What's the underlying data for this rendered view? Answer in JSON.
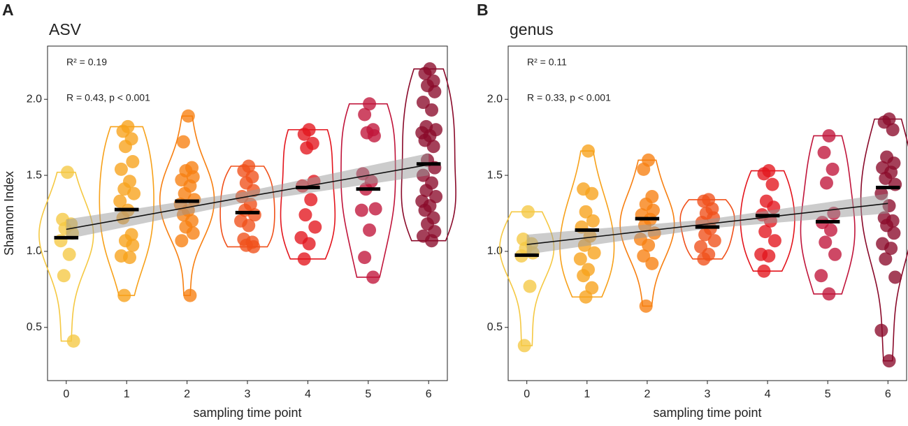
{
  "chart_data": [
    {
      "type": "violin",
      "panel": "A",
      "title": "ASV",
      "x_label": "sampling time point",
      "y_label": "Shannon Index",
      "annotations": [
        "R² = 0.19",
        "R = 0.43, p < 0.001"
      ],
      "xlim": [
        -0.31,
        6.31
      ],
      "xticks": [
        0,
        1,
        2,
        3,
        4,
        5,
        6
      ],
      "ylim": [
        0.15,
        2.35
      ],
      "yticks": [
        {
          "value": 0.5,
          "label": "0.5"
        },
        {
          "value": 1,
          "label": "1.0"
        },
        {
          "value": 1.5,
          "label": "1.5"
        },
        {
          "value": 2,
          "label": "2.0"
        }
      ],
      "fit": {
        "x": [
          0,
          3,
          6
        ],
        "y": [
          1.145,
          1.36,
          1.57
        ],
        "lower": [
          1.08,
          1.325,
          1.5
        ],
        "upper": [
          1.21,
          1.395,
          1.645
        ]
      },
      "series": [
        {
          "color": "#f5c842",
          "median": 1.09,
          "x": [
            0.02,
            -0.06,
            0.08,
            -0.02,
            0.1,
            -0.09,
            0.05,
            -0.04,
            0.12
          ],
          "values": [
            1.52,
            1.21,
            1.18,
            1.15,
            1.12,
            1.07,
            0.98,
            0.84,
            0.41
          ]
        },
        {
          "color": "#f7a11a",
          "median": 1.275,
          "x": [
            1.02,
            0.94,
            1.08,
            0.98,
            1.1,
            0.91,
            1.05,
            0.96,
            1.12,
            0.89,
            1.02,
            0.94,
            1.08,
            0.98,
            1.1,
            0.91,
            1.05,
            0.96
          ],
          "values": [
            1.82,
            1.79,
            1.74,
            1.69,
            1.59,
            1.54,
            1.46,
            1.41,
            1.38,
            1.33,
            1.27,
            1.22,
            1.11,
            1.07,
            1.04,
            0.97,
            0.96,
            0.71
          ]
        },
        {
          "color": "#f77f10",
          "median": 1.33,
          "x": [
            2.02,
            1.94,
            2.08,
            1.98,
            2.1,
            1.91,
            2.05,
            1.96,
            2.12,
            1.89,
            2.02,
            1.94,
            2.08,
            1.98,
            2.1,
            1.91,
            2.05
          ],
          "values": [
            1.89,
            1.72,
            1.55,
            1.53,
            1.49,
            1.47,
            1.43,
            1.38,
            1.34,
            1.31,
            1.27,
            1.24,
            1.2,
            1.16,
            1.12,
            1.07,
            0.71
          ]
        },
        {
          "color": "#f0501a",
          "median": 1.255,
          "x": [
            3.02,
            2.94,
            3.08,
            2.98,
            3.1,
            2.91,
            3.05,
            2.96,
            3.12,
            2.89,
            3.02,
            2.94,
            3.08,
            2.98,
            3.1
          ],
          "values": [
            1.56,
            1.53,
            1.49,
            1.45,
            1.4,
            1.36,
            1.31,
            1.27,
            1.24,
            1.2,
            1.17,
            1.08,
            1.06,
            1.04,
            1.03
          ]
        },
        {
          "color": "#e3141c",
          "median": 1.42,
          "x": [
            4.02,
            3.94,
            4.08,
            3.98,
            4.1,
            3.91,
            4.05,
            3.96,
            4.12,
            3.89,
            4.02,
            3.94
          ],
          "values": [
            1.8,
            1.77,
            1.71,
            1.68,
            1.46,
            1.43,
            1.34,
            1.24,
            1.16,
            1.09,
            1.05,
            0.95
          ]
        },
        {
          "color": "#c0143a",
          "median": 1.41,
          "x": [
            5.02,
            4.94,
            5.08,
            4.98,
            5.1,
            4.91,
            5.05,
            4.96,
            5.12,
            4.89,
            5.02,
            4.94,
            5.08
          ],
          "values": [
            1.97,
            1.9,
            1.8,
            1.78,
            1.76,
            1.51,
            1.46,
            1.41,
            1.28,
            1.27,
            1.14,
            0.96,
            0.83
          ]
        },
        {
          "color": "#8a0a2a",
          "median": 1.575,
          "x": [
            6.02,
            5.94,
            6.08,
            5.98,
            6.1,
            5.91,
            6.05,
            5.96,
            6.12,
            5.89,
            6.02,
            5.94,
            6.08,
            5.98,
            6.1,
            5.91,
            6.05,
            5.96,
            6.12,
            5.89,
            6.02,
            5.94,
            6.08,
            5.98,
            6.1,
            5.91,
            6.05
          ],
          "values": [
            2.2,
            2.17,
            2.12,
            2.09,
            2.05,
            1.98,
            1.93,
            1.82,
            1.8,
            1.78,
            1.76,
            1.73,
            1.69,
            1.6,
            1.55,
            1.5,
            1.45,
            1.4,
            1.36,
            1.33,
            1.3,
            1.27,
            1.22,
            1.18,
            1.13,
            1.1,
            1.07
          ]
        }
      ]
    },
    {
      "type": "violin",
      "panel": "B",
      "title": "genus",
      "x_label": "sampling time point",
      "annotations": [
        "R² = 0.11",
        "R = 0.33, p < 0.001"
      ],
      "xlim": [
        -0.31,
        6.31
      ],
      "xticks": [
        0,
        1,
        2,
        3,
        4,
        5,
        6
      ],
      "ylim": [
        0.15,
        2.35
      ],
      "yticks": [
        {
          "value": 0.5,
          "label": "0.5"
        },
        {
          "value": 1,
          "label": "1.0"
        },
        {
          "value": 1.5,
          "label": "1.5"
        },
        {
          "value": 2,
          "label": "2.0"
        }
      ],
      "fit": {
        "x": [
          0,
          3,
          6
        ],
        "y": [
          1.045,
          1.18,
          1.315
        ],
        "lower": [
          0.98,
          1.15,
          1.25
        ],
        "upper": [
          1.11,
          1.21,
          1.38
        ]
      },
      "series": [
        {
          "color": "#f5c842",
          "median": 0.975,
          "x": [
            0.02,
            -0.06,
            0.08,
            -0.02,
            0.1,
            -0.09,
            0.05,
            -0.04
          ],
          "values": [
            1.26,
            1.08,
            1.05,
            1.02,
            0.99,
            0.97,
            0.77,
            0.38
          ]
        },
        {
          "color": "#f7a11a",
          "median": 1.14,
          "x": [
            1.02,
            0.94,
            1.08,
            0.98,
            1.1,
            0.91,
            1.05,
            0.96,
            1.12,
            0.89,
            1.02,
            0.94,
            1.08,
            0.98
          ],
          "values": [
            1.66,
            1.41,
            1.38,
            1.26,
            1.2,
            1.16,
            1.1,
            1.04,
            0.99,
            0.95,
            0.88,
            0.84,
            0.76,
            0.7
          ]
        },
        {
          "color": "#f77f10",
          "median": 1.215,
          "x": [
            2.02,
            1.94,
            2.08,
            1.98,
            2.1,
            1.91,
            2.05,
            1.96,
            2.12,
            1.89,
            2.02,
            1.94,
            2.08,
            1.98
          ],
          "values": [
            1.6,
            1.54,
            1.36,
            1.31,
            1.27,
            1.24,
            1.21,
            1.17,
            1.12,
            1.08,
            1.04,
            0.97,
            0.92,
            0.64
          ]
        },
        {
          "color": "#f0501a",
          "median": 1.16,
          "x": [
            3.02,
            2.94,
            3.08,
            2.98,
            3.1,
            2.91,
            3.05,
            2.96,
            3.12,
            2.89,
            3.02,
            2.94
          ],
          "values": [
            1.34,
            1.33,
            1.28,
            1.25,
            1.22,
            1.19,
            1.15,
            1.11,
            1.07,
            1.03,
            0.98,
            0.95
          ]
        },
        {
          "color": "#e3141c",
          "median": 1.235,
          "x": [
            4.02,
            3.94,
            4.08,
            3.98,
            4.1,
            3.91,
            4.05,
            3.96,
            4.12,
            3.89,
            4.02,
            3.94
          ],
          "values": [
            1.53,
            1.51,
            1.44,
            1.33,
            1.29,
            1.24,
            1.2,
            1.13,
            1.07,
            0.98,
            0.97,
            0.87
          ]
        },
        {
          "color": "#c0143a",
          "median": 1.195,
          "x": [
            5.02,
            4.94,
            5.08,
            4.98,
            5.1,
            4.91,
            5.05,
            4.96,
            5.12,
            4.89,
            5.02
          ],
          "values": [
            1.76,
            1.65,
            1.54,
            1.45,
            1.25,
            1.19,
            1.14,
            1.06,
            0.98,
            0.84,
            0.72
          ]
        },
        {
          "color": "#8a0a2a",
          "median": 1.42,
          "x": [
            6.02,
            5.94,
            6.08,
            5.98,
            6.1,
            5.91,
            6.05,
            5.96,
            6.12,
            5.89,
            6.02,
            5.94,
            6.08,
            5.98,
            6.1,
            5.91,
            6.05,
            5.96,
            6.12,
            5.89,
            6.02
          ],
          "values": [
            1.87,
            1.85,
            1.8,
            1.62,
            1.58,
            1.55,
            1.52,
            1.48,
            1.44,
            1.38,
            1.3,
            1.22,
            1.2,
            1.17,
            1.12,
            1.05,
            1.02,
            0.95,
            0.83,
            0.48,
            0.28
          ]
        }
      ]
    }
  ]
}
